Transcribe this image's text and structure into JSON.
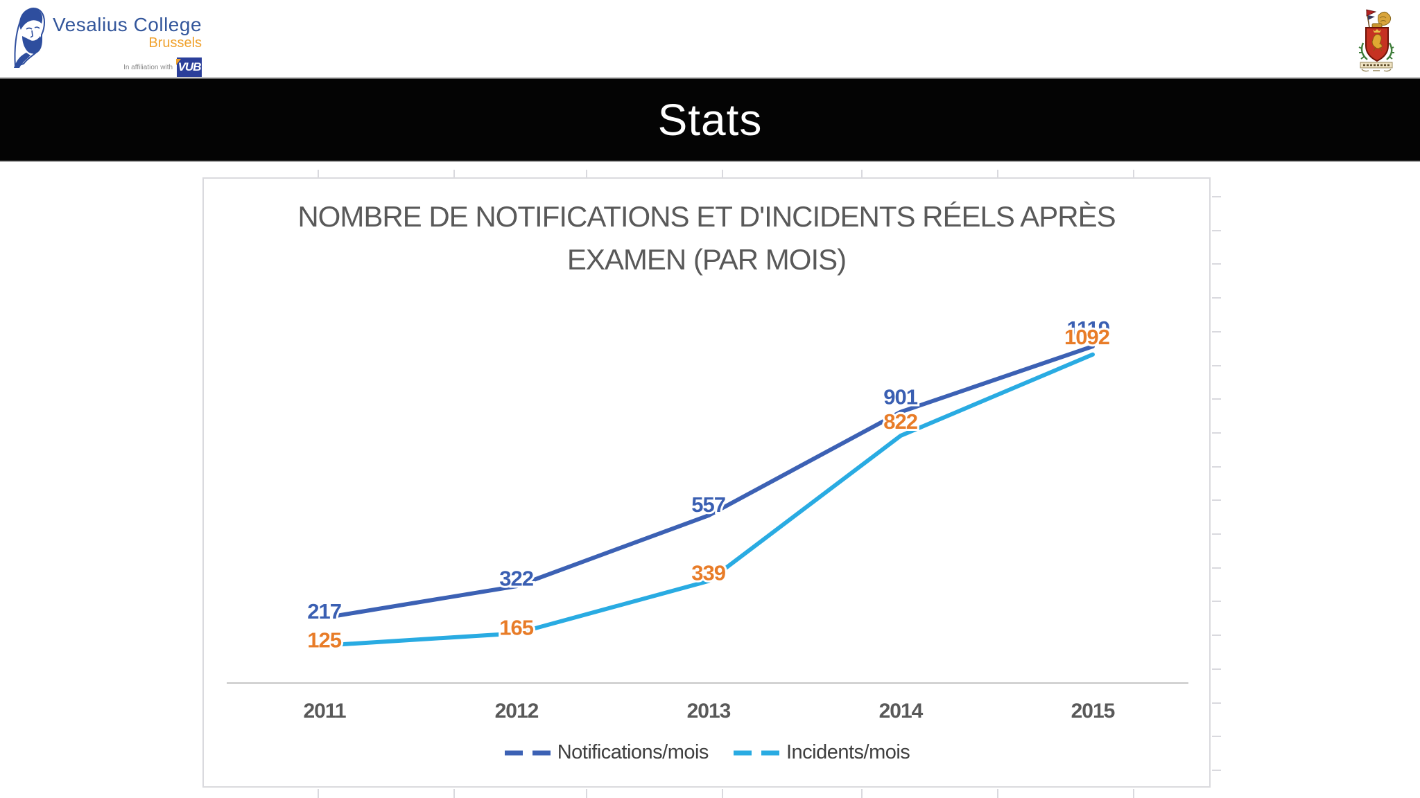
{
  "header": {
    "logo": {
      "title": "Vesalius College",
      "subtitle": "Brussels",
      "affiliation_text": "In affiliation with",
      "affiliation_logo": "VUB"
    }
  },
  "banner": {
    "title": "Stats"
  },
  "chart_data": {
    "type": "line",
    "title": "NOMBRE DE NOTIFICATIONS ET D'INCIDENTS RÉELS APRÈS EXAMEN (PAR MOIS)",
    "title_lines": [
      "NOMBRE DE NOTIFICATIONS ET D'INCIDENTS RÉELS APRÈS",
      "EXAMEN (PAR MOIS)"
    ],
    "categories": [
      "2011",
      "2012",
      "2013",
      "2014",
      "2015"
    ],
    "series": [
      {
        "name": "Notifications/mois",
        "values": [
          217,
          322,
          557,
          901,
          1119
        ],
        "color": "#3C61B4",
        "label_color": "#3A5FB2"
      },
      {
        "name": "Incidents/mois",
        "values": [
          125,
          165,
          339,
          822,
          1092
        ],
        "color": "#29ABE2",
        "label_color": "#E87C28"
      }
    ],
    "xlabel": "",
    "ylabel": "",
    "ylim": [
      0,
      1680
    ],
    "grid": false,
    "data_labels": true,
    "legend_position": "bottom",
    "axis_color": "#C6C6C6",
    "text_color": "#595959"
  }
}
